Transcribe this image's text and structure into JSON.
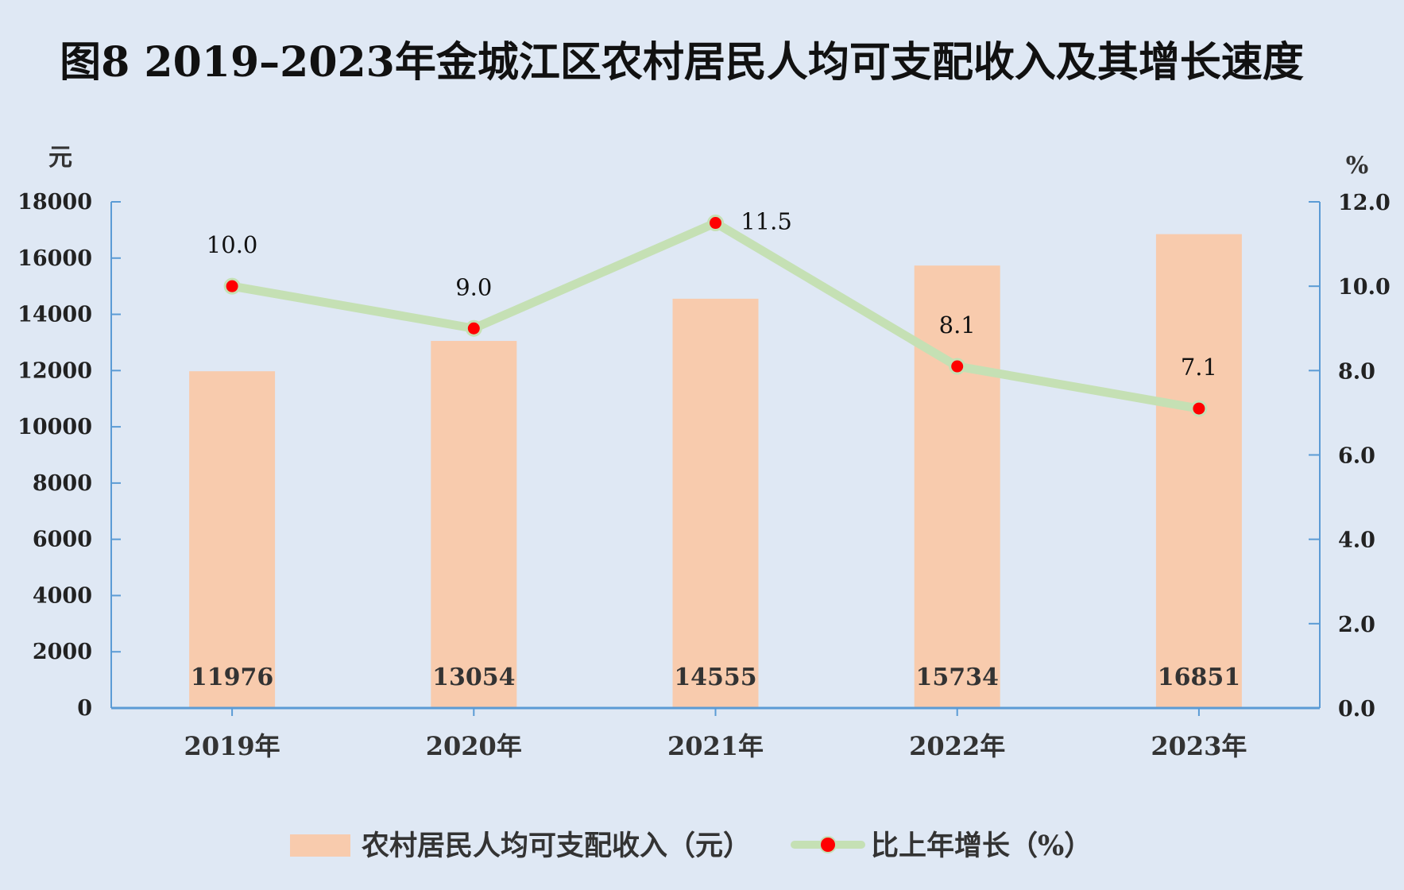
{
  "chart_data": {
    "type": "bar",
    "title": "图8   2019–2023年金城江区农村居民人均可支配收入及其增长速度",
    "categories": [
      "2019年",
      "2020年",
      "2021年",
      "2022年",
      "2023年"
    ],
    "series": [
      {
        "name": "农村居民人均可支配收入（元）",
        "type": "bar",
        "axis": "left",
        "values": [
          11976,
          13054,
          14555,
          15734,
          16851
        ],
        "color": "#f8cbad"
      },
      {
        "name": "比上年增长（%）",
        "type": "line",
        "axis": "right",
        "values": [
          10.0,
          9.0,
          11.5,
          8.1,
          7.1
        ],
        "value_labels": [
          "10.0",
          "9.0",
          "11.5",
          "8.1",
          "7.1"
        ],
        "color": "#c5e0b4",
        "marker_color": "#ff0000"
      }
    ],
    "y_left": {
      "unit": "元",
      "ylim": [
        0,
        18000
      ],
      "ticks": [
        0,
        2000,
        4000,
        6000,
        8000,
        10000,
        12000,
        14000,
        16000,
        18000
      ]
    },
    "y_right": {
      "unit": "%",
      "ylim": [
        0,
        12
      ],
      "ticks": [
        "0.0",
        "2.0",
        "4.0",
        "6.0",
        "8.0",
        "10.0",
        "12.0"
      ]
    },
    "axis_color": "#5b9bd5",
    "grid": false,
    "legend": "bottom"
  }
}
